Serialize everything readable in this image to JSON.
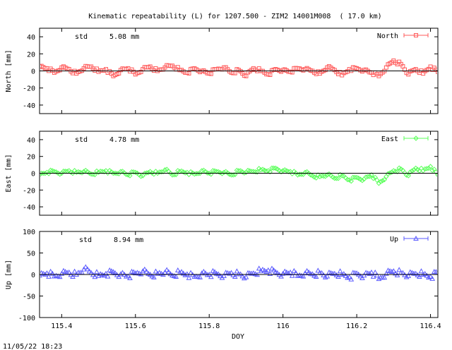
{
  "chart_data": [
    {
      "type": "scatter",
      "title": "Kinematic repeatability (L) for 1207.500 - ZIM2 14001M008  ( 17.0 km)",
      "ylabel": "North [mm]",
      "legend": "North",
      "legend_position": "top-right",
      "std_label": "std",
      "std_value": "5.08 mm",
      "color": "#ff5a5a",
      "marker": "square",
      "ylim": [
        -50,
        50
      ],
      "yticks": [
        -40,
        -20,
        0,
        20,
        40
      ],
      "xlim": [
        115.34,
        116.42
      ],
      "series": [
        {
          "name": "North",
          "x": [
            115.34,
            115.36,
            115.38,
            115.4,
            115.42,
            115.44,
            115.46,
            115.48,
            115.5,
            115.52,
            115.54,
            115.56,
            115.58,
            115.6,
            115.62,
            115.64,
            115.66,
            115.68,
            115.7,
            115.72,
            115.74,
            115.76,
            115.78,
            115.8,
            115.82,
            115.84,
            115.86,
            115.88,
            115.9,
            115.92,
            115.94,
            115.96,
            115.98,
            116.0,
            116.02,
            116.04,
            116.06,
            116.08,
            116.1,
            116.12,
            116.14,
            116.16,
            116.18,
            116.2,
            116.22,
            116.24,
            116.26,
            116.28,
            116.3,
            116.32,
            116.34,
            116.36,
            116.38,
            116.4,
            116.42
          ],
          "values": [
            5,
            3,
            -2,
            4,
            2,
            -3,
            3,
            5,
            -1,
            2,
            -6,
            1,
            3,
            -4,
            2,
            5,
            0,
            4,
            6,
            1,
            -2,
            3,
            0,
            -3,
            2,
            4,
            -2,
            1,
            -6,
            3,
            0,
            -4,
            2,
            1,
            -1,
            3,
            2,
            0,
            -3,
            4,
            1,
            -5,
            2,
            3,
            1,
            -2,
            -6,
            4,
            12,
            8,
            -4,
            2,
            -3,
            5,
            -1
          ]
        }
      ]
    },
    {
      "type": "scatter",
      "ylabel": "East [mm]",
      "legend": "East",
      "legend_position": "top-right",
      "std_label": "std",
      "std_value": "4.78 mm",
      "color": "#5aff5a",
      "marker": "diamond",
      "ylim": [
        -50,
        50
      ],
      "yticks": [
        -40,
        -20,
        0,
        20,
        40
      ],
      "xlim": [
        115.34,
        116.42
      ],
      "series": [
        {
          "name": "East",
          "x": [
            115.34,
            115.36,
            115.38,
            115.4,
            115.42,
            115.44,
            115.46,
            115.48,
            115.5,
            115.52,
            115.54,
            115.56,
            115.58,
            115.6,
            115.62,
            115.64,
            115.66,
            115.68,
            115.7,
            115.72,
            115.74,
            115.76,
            115.78,
            115.8,
            115.82,
            115.84,
            115.86,
            115.88,
            115.9,
            115.92,
            115.94,
            115.96,
            115.98,
            116.0,
            116.02,
            116.04,
            116.06,
            116.08,
            116.1,
            116.12,
            116.14,
            116.16,
            116.18,
            116.2,
            116.22,
            116.24,
            116.26,
            116.28,
            116.3,
            116.32,
            116.34,
            116.36,
            116.38,
            116.4,
            116.42
          ],
          "values": [
            -2,
            1,
            2,
            0,
            3,
            1,
            2,
            -1,
            1,
            3,
            0,
            2,
            -2,
            1,
            -3,
            2,
            0,
            4,
            -2,
            2,
            1,
            -1,
            3,
            0,
            2,
            1,
            -2,
            3,
            1,
            2,
            4,
            3,
            6,
            3,
            2,
            -2,
            1,
            -3,
            -4,
            -2,
            -6,
            -3,
            -8,
            -5,
            -7,
            -2,
            -12,
            -4,
            3,
            5,
            -3,
            6,
            3,
            8,
            -2
          ]
        }
      ]
    },
    {
      "type": "scatter",
      "ylabel": "Up [mm]",
      "xlabel": "DOY",
      "legend": "Up",
      "legend_position": "top-right",
      "std_label": "std",
      "std_value": "8.94 mm",
      "color": "#5a5aff",
      "marker": "triangle",
      "ylim": [
        -100,
        100
      ],
      "yticks": [
        -100,
        -50,
        0,
        50,
        100
      ],
      "xlim": [
        115.34,
        116.42
      ],
      "xticks": [
        115.4,
        115.6,
        115.8,
        116,
        116.2,
        116.4
      ],
      "series": [
        {
          "name": "Up",
          "x": [
            115.34,
            115.36,
            115.38,
            115.4,
            115.42,
            115.44,
            115.46,
            115.48,
            115.5,
            115.52,
            115.54,
            115.56,
            115.58,
            115.6,
            115.62,
            115.64,
            115.66,
            115.68,
            115.7,
            115.72,
            115.74,
            115.76,
            115.78,
            115.8,
            115.82,
            115.84,
            115.86,
            115.88,
            115.9,
            115.92,
            115.94,
            115.96,
            115.98,
            116.0,
            116.02,
            116.04,
            116.06,
            116.08,
            116.1,
            116.12,
            116.14,
            116.16,
            116.18,
            116.2,
            116.22,
            116.24,
            116.26,
            116.28,
            116.3,
            116.32,
            116.34,
            116.36,
            116.38,
            116.4,
            116.42
          ],
          "values": [
            -2,
            3,
            -4,
            2,
            5,
            0,
            12,
            4,
            -3,
            2,
            6,
            1,
            -4,
            3,
            8,
            0,
            2,
            5,
            -2,
            4,
            1,
            -5,
            3,
            0,
            2,
            -3,
            4,
            1,
            -6,
            3,
            8,
            10,
            6,
            2,
            5,
            -3,
            3,
            1,
            4,
            -4,
            2,
            0,
            -6,
            3,
            -2,
            5,
            -10,
            2,
            8,
            4,
            -3,
            2,
            0,
            -5,
            6
          ]
        }
      ]
    }
  ],
  "footer_timestamp": "11/05/22 18:23"
}
